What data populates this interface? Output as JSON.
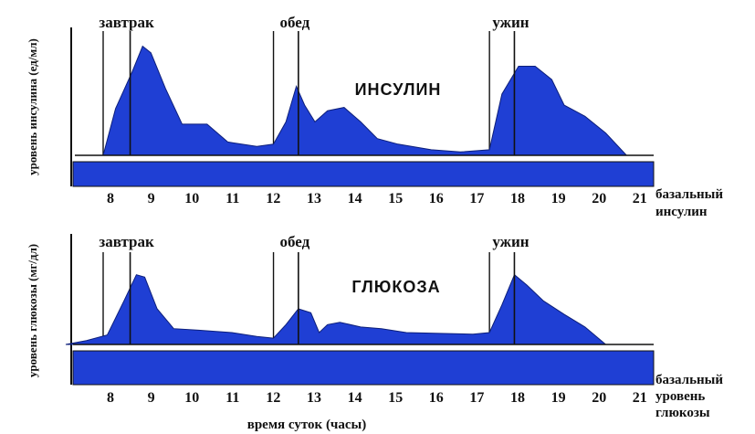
{
  "chart_data": [
    {
      "type": "area",
      "title": "ИНСУЛИН",
      "ylabel": "уровень инсулина (ед/мл)",
      "xlabel": "",
      "base_label": [
        "базальный",
        "инсулин"
      ],
      "xlim": [
        7.0,
        21.0
      ],
      "x_ticks": [
        "8",
        "9",
        "10",
        "11",
        "12",
        "13",
        "14",
        "15",
        "16",
        "17",
        "18",
        "19",
        "20",
        "21"
      ],
      "meals": [
        {
          "label": "завтрак",
          "x": 8.55
        },
        {
          "label": "обед",
          "x": 12.6
        },
        {
          "label": "ужин",
          "x": 17.8
        }
      ],
      "onset_lines": [
        7.9,
        12.0,
        17.2
      ],
      "color": "#1f3fd4",
      "x": [
        7.9,
        8.2,
        8.6,
        8.85,
        9.05,
        9.4,
        9.8,
        10.4,
        10.9,
        11.6,
        12.0,
        12.3,
        12.55,
        12.75,
        13.0,
        13.3,
        13.7,
        14.1,
        14.5,
        15.0,
        15.8,
        16.5,
        17.2,
        17.5,
        17.9,
        18.3,
        18.7,
        19.0,
        19.5,
        20.0,
        20.5
      ],
      "y": [
        0.0,
        0.42,
        0.75,
        0.98,
        0.92,
        0.6,
        0.28,
        0.28,
        0.12,
        0.08,
        0.1,
        0.3,
        0.62,
        0.45,
        0.3,
        0.4,
        0.43,
        0.3,
        0.15,
        0.1,
        0.05,
        0.03,
        0.05,
        0.55,
        0.8,
        0.8,
        0.68,
        0.45,
        0.35,
        0.2,
        0.0
      ],
      "ylim": [
        0,
        1.05
      ]
    },
    {
      "type": "area",
      "title": "ГЛЮКОЗА",
      "ylabel": "уровень глюкозы (мг/дл)",
      "xlabel": "время суток (часы)",
      "base_label": [
        "базальный",
        "уровень",
        "глюкозы"
      ],
      "xlim": [
        7.0,
        21.0
      ],
      "x_ticks": [
        "8",
        "9",
        "10",
        "11",
        "12",
        "13",
        "14",
        "15",
        "16",
        "17",
        "18",
        "19",
        "20",
        "21"
      ],
      "meals": [
        {
          "label": "завтрак",
          "x": 8.55
        },
        {
          "label": "обед",
          "x": 12.6
        },
        {
          "label": "ужин",
          "x": 17.8
        }
      ],
      "onset_lines": [
        7.9,
        12.0,
        17.2
      ],
      "color": "#1f3fd4",
      "x": [
        7.0,
        7.5,
        8.0,
        8.4,
        8.7,
        8.9,
        9.2,
        9.6,
        10.2,
        11.0,
        11.6,
        12.0,
        12.3,
        12.6,
        12.9,
        13.1,
        13.3,
        13.6,
        14.1,
        14.6,
        15.2,
        16.0,
        16.8,
        17.2,
        17.5,
        17.8,
        18.1,
        18.5,
        19.0,
        19.5,
        20.0
      ],
      "y": [
        0.0,
        0.05,
        0.12,
        0.55,
        0.88,
        0.85,
        0.45,
        0.2,
        0.18,
        0.15,
        0.1,
        0.08,
        0.25,
        0.45,
        0.4,
        0.15,
        0.25,
        0.28,
        0.22,
        0.2,
        0.15,
        0.14,
        0.13,
        0.15,
        0.5,
        0.88,
        0.75,
        0.55,
        0.38,
        0.22,
        0.0
      ],
      "ylim": [
        0,
        1.05
      ]
    }
  ]
}
